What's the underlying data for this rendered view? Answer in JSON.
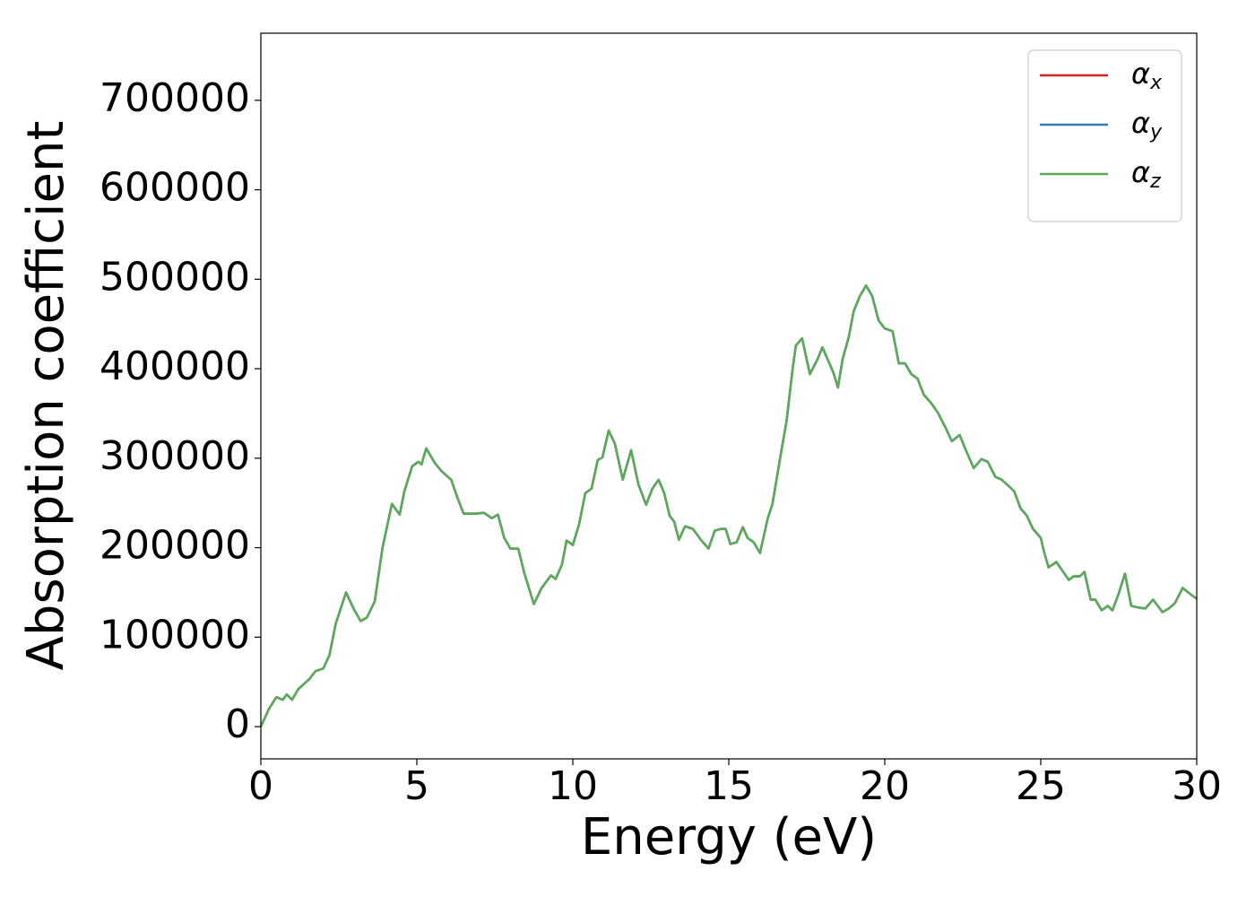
{
  "chart_data": {
    "type": "line",
    "xlabel": "Energy (eV)",
    "ylabel": "Absorption coefficient",
    "x": [
      0,
      0.26,
      0.5,
      0.7,
      0.83,
      1.0,
      1.2,
      1.55,
      1.75,
      2.0,
      2.2,
      2.4,
      2.73,
      3.0,
      3.2,
      3.4,
      3.65,
      3.9,
      4.2,
      4.45,
      4.6,
      4.85,
      5.05,
      5.15,
      5.3,
      5.57,
      5.78,
      6.1,
      6.3,
      6.5,
      6.9,
      7.15,
      7.4,
      7.6,
      7.8,
      8.0,
      8.25,
      8.45,
      8.75,
      9.0,
      9.3,
      9.45,
      9.65,
      9.8,
      10.0,
      10.2,
      10.4,
      10.6,
      10.8,
      10.95,
      11.15,
      11.35,
      11.6,
      11.87,
      12.1,
      12.35,
      12.55,
      12.75,
      12.93,
      13.1,
      13.25,
      13.4,
      13.6,
      13.85,
      14.1,
      14.35,
      14.55,
      14.75,
      14.9,
      15.05,
      15.25,
      15.45,
      15.6,
      15.8,
      16.0,
      16.25,
      16.4,
      16.65,
      16.85,
      17.05,
      17.15,
      17.35,
      17.6,
      17.85,
      18.0,
      18.2,
      18.35,
      18.5,
      18.65,
      18.85,
      19.0,
      19.2,
      19.4,
      19.6,
      19.8,
      20.0,
      20.25,
      20.45,
      20.65,
      20.85,
      21.05,
      21.25,
      21.5,
      21.7,
      21.95,
      22.15,
      22.4,
      22.6,
      22.85,
      23.1,
      23.3,
      23.55,
      23.75,
      24.0,
      24.15,
      24.35,
      24.55,
      24.75,
      25.0,
      25.1,
      25.25,
      25.5,
      25.7,
      25.9,
      26.05,
      26.25,
      26.4,
      26.6,
      26.75,
      26.95,
      27.15,
      27.3,
      27.5,
      27.7,
      27.9,
      28.15,
      28.35,
      28.6,
      28.9,
      29.1,
      29.3,
      29.55,
      29.8,
      30.0
    ],
    "series": [
      {
        "name": "αx",
        "color": "#d62728",
        "values": [
          0,
          20000,
          33000,
          30000,
          36000,
          30000,
          42000,
          53000,
          62000,
          65000,
          80000,
          115000,
          150000,
          130000,
          118000,
          122000,
          140000,
          200000,
          249000,
          237000,
          263000,
          291000,
          296000,
          293000,
          311000,
          295000,
          286000,
          276000,
          256000,
          238000,
          238000,
          239000,
          233000,
          237000,
          211000,
          199000,
          199000,
          171000,
          137000,
          155000,
          169000,
          165000,
          181000,
          208000,
          203000,
          226000,
          261000,
          266000,
          298000,
          301000,
          331000,
          316000,
          276000,
          309000,
          271000,
          248000,
          266000,
          276000,
          261000,
          236000,
          229000,
          209000,
          224000,
          221000,
          209000,
          199000,
          219000,
          221000,
          221000,
          204000,
          206000,
          223000,
          211000,
          206000,
          194000,
          233000,
          249000,
          301000,
          341000,
          401000,
          426000,
          434000,
          394000,
          411000,
          424000,
          408000,
          396000,
          379000,
          411000,
          436000,
          464000,
          481000,
          493000,
          481000,
          454000,
          445000,
          442000,
          406000,
          406000,
          394000,
          389000,
          371000,
          361000,
          351000,
          334000,
          319000,
          326000,
          309000,
          289000,
          299000,
          296000,
          279000,
          276000,
          268000,
          263000,
          244000,
          236000,
          221000,
          211000,
          196000,
          178000,
          184000,
          174000,
          164000,
          168000,
          168000,
          173000,
          142000,
          142000,
          130000,
          135000,
          130000,
          149000,
          171000,
          135000,
          133000,
          132000,
          142000,
          128000,
          132000,
          138000,
          155000,
          148000,
          143000
        ]
      },
      {
        "name": "αy",
        "color": "#377eb8",
        "values": [
          0,
          20000,
          33000,
          30000,
          36000,
          30000,
          42000,
          53000,
          62000,
          65000,
          80000,
          115000,
          150000,
          130000,
          118000,
          122000,
          140000,
          200000,
          249000,
          237000,
          263000,
          291000,
          296000,
          293000,
          311000,
          295000,
          286000,
          276000,
          256000,
          238000,
          238000,
          239000,
          233000,
          237000,
          211000,
          199000,
          199000,
          171000,
          137000,
          155000,
          169000,
          165000,
          181000,
          208000,
          203000,
          226000,
          261000,
          266000,
          298000,
          301000,
          331000,
          316000,
          276000,
          309000,
          271000,
          248000,
          266000,
          276000,
          261000,
          236000,
          229000,
          209000,
          224000,
          221000,
          209000,
          199000,
          219000,
          221000,
          221000,
          204000,
          206000,
          223000,
          211000,
          206000,
          194000,
          233000,
          249000,
          301000,
          341000,
          401000,
          426000,
          434000,
          394000,
          411000,
          424000,
          408000,
          396000,
          379000,
          411000,
          436000,
          464000,
          481000,
          493000,
          481000,
          454000,
          445000,
          442000,
          406000,
          406000,
          394000,
          389000,
          371000,
          361000,
          351000,
          334000,
          319000,
          326000,
          309000,
          289000,
          299000,
          296000,
          279000,
          276000,
          268000,
          263000,
          244000,
          236000,
          221000,
          211000,
          196000,
          178000,
          184000,
          174000,
          164000,
          168000,
          168000,
          173000,
          142000,
          142000,
          130000,
          135000,
          130000,
          149000,
          171000,
          135000,
          133000,
          132000,
          142000,
          128000,
          132000,
          138000,
          155000,
          148000,
          143000
        ]
      },
      {
        "name": "αz",
        "color": "#5aab57",
        "values": [
          0,
          20000,
          33000,
          30000,
          36000,
          30000,
          42000,
          53000,
          62000,
          65000,
          80000,
          115000,
          150000,
          130000,
          118000,
          122000,
          140000,
          200000,
          249000,
          237000,
          263000,
          291000,
          296000,
          293000,
          311000,
          295000,
          286000,
          276000,
          256000,
          238000,
          238000,
          239000,
          233000,
          237000,
          211000,
          199000,
          199000,
          171000,
          137000,
          155000,
          169000,
          165000,
          181000,
          208000,
          203000,
          226000,
          261000,
          266000,
          298000,
          301000,
          331000,
          316000,
          276000,
          309000,
          271000,
          248000,
          266000,
          276000,
          261000,
          236000,
          229000,
          209000,
          224000,
          221000,
          209000,
          199000,
          219000,
          221000,
          221000,
          204000,
          206000,
          223000,
          211000,
          206000,
          194000,
          233000,
          249000,
          301000,
          341000,
          401000,
          426000,
          434000,
          394000,
          411000,
          424000,
          408000,
          396000,
          379000,
          411000,
          436000,
          464000,
          481000,
          493000,
          481000,
          454000,
          445000,
          442000,
          406000,
          406000,
          394000,
          389000,
          371000,
          361000,
          351000,
          334000,
          319000,
          326000,
          309000,
          289000,
          299000,
          296000,
          279000,
          276000,
          268000,
          263000,
          244000,
          236000,
          221000,
          211000,
          196000,
          178000,
          184000,
          174000,
          164000,
          168000,
          168000,
          173000,
          142000,
          142000,
          130000,
          135000,
          130000,
          149000,
          171000,
          135000,
          133000,
          132000,
          142000,
          128000,
          132000,
          138000,
          155000,
          148000,
          143000
        ]
      }
    ],
    "xlim": [
      0,
      30
    ],
    "xticks": [
      0,
      5,
      10,
      15,
      20,
      25,
      30
    ],
    "ylim": [
      -36000,
      775000
    ],
    "yticks": [
      0,
      100000,
      200000,
      300000,
      400000,
      500000,
      600000,
      700000
    ],
    "grid": false,
    "legend": "upper right"
  }
}
